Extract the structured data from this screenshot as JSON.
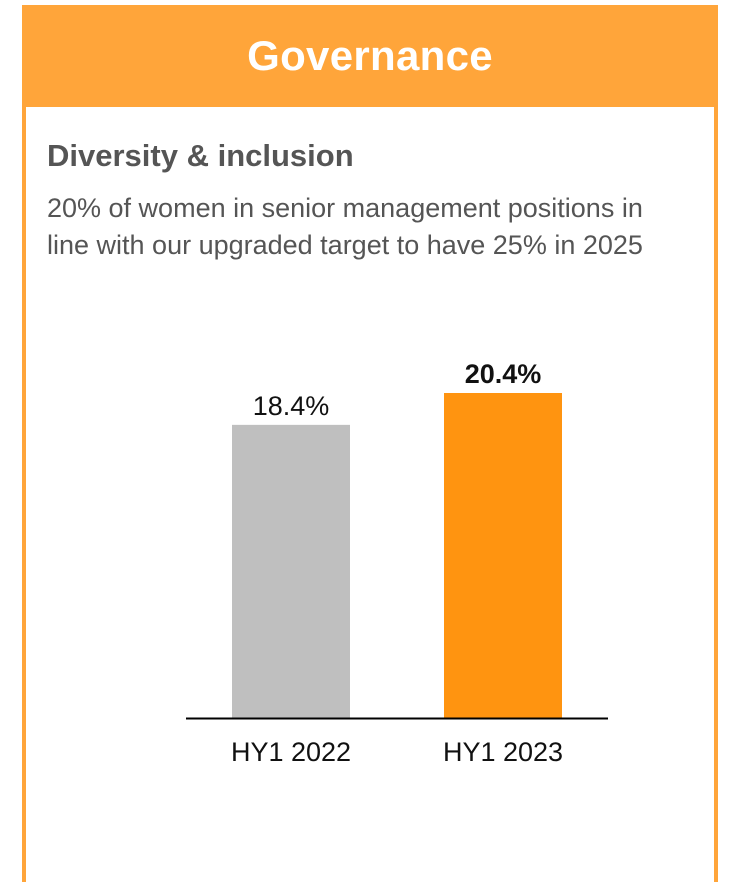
{
  "header": {
    "title": "Governance"
  },
  "section": {
    "title": "Diversity & inclusion",
    "description": "20% of women in senior management positions in line with our upgraded target to have 25% in 2025"
  },
  "colors": {
    "accent": "#FFA53A",
    "bar_previous": "#BFBFBF",
    "bar_current": "#FF9410",
    "axis": "#000000"
  },
  "chart_data": {
    "type": "bar",
    "categories": [
      "HY1 2022",
      "HY1 2023"
    ],
    "values": [
      18.4,
      20.4
    ],
    "value_labels": [
      "18.4%",
      "20.4%"
    ],
    "highlight_index": 1,
    "title": "",
    "xlabel": "",
    "ylabel": "",
    "ylim": [
      0,
      20.4
    ],
    "grid": false,
    "legend": "none"
  }
}
